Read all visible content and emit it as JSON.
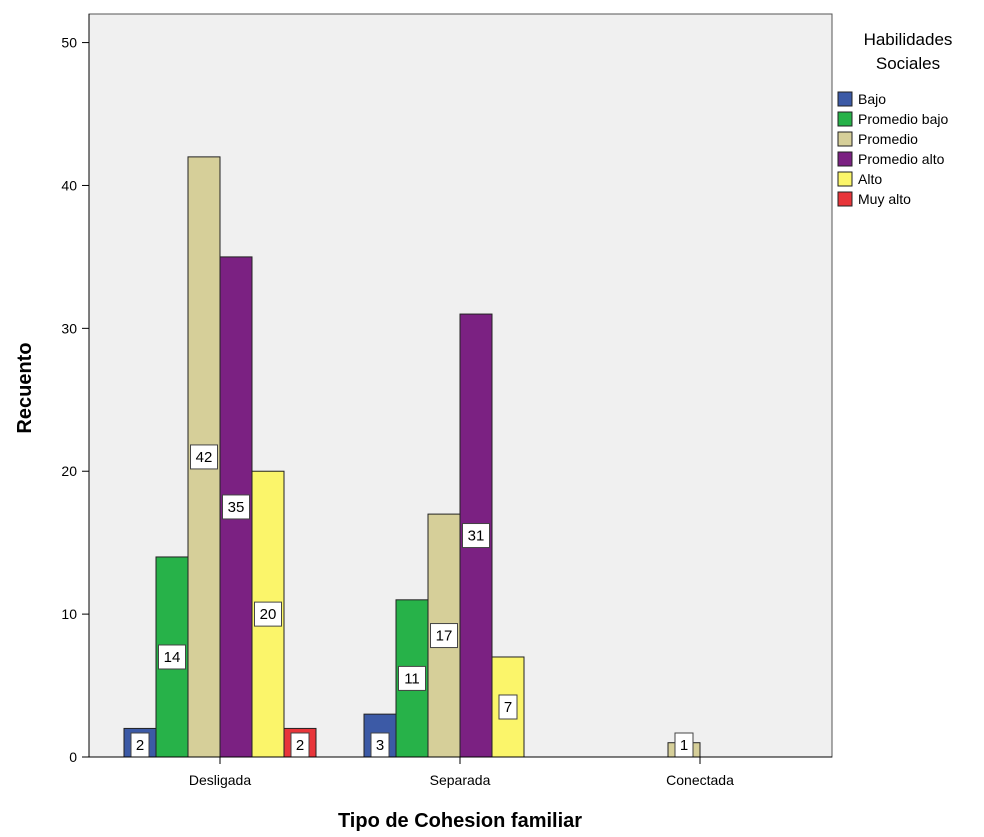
{
  "chart_data": {
    "type": "bar",
    "title": "",
    "xlabel": "Tipo de Cohesion familiar",
    "ylabel": "Recuento",
    "categories": [
      "Desligada",
      "Separada",
      "Conectada"
    ],
    "ylim": [
      0,
      52
    ],
    "yticks": [
      0,
      10,
      20,
      30,
      40,
      50
    ],
    "grid": false,
    "legend": {
      "title_line1": "Habilidades",
      "title_line2": "Sociales",
      "placement": "right"
    },
    "series": [
      {
        "name": "Bajo",
        "color": "#3c5aa6",
        "values": [
          2,
          3,
          0
        ]
      },
      {
        "name": "Promedio bajo",
        "color": "#27b249",
        "values": [
          14,
          11,
          0
        ]
      },
      {
        "name": "Promedio",
        "color": "#d6cf99",
        "values": [
          42,
          17,
          1
        ]
      },
      {
        "name": "Promedio alto",
        "color": "#7b2182",
        "values": [
          35,
          31,
          0
        ]
      },
      {
        "name": "Alto",
        "color": "#fbf56a",
        "values": [
          20,
          7,
          0
        ]
      },
      {
        "name": "Muy alto",
        "color": "#e8353a",
        "values": [
          2,
          0,
          0
        ]
      }
    ],
    "data_labels": true,
    "plot_background": "#f0f0f0"
  }
}
